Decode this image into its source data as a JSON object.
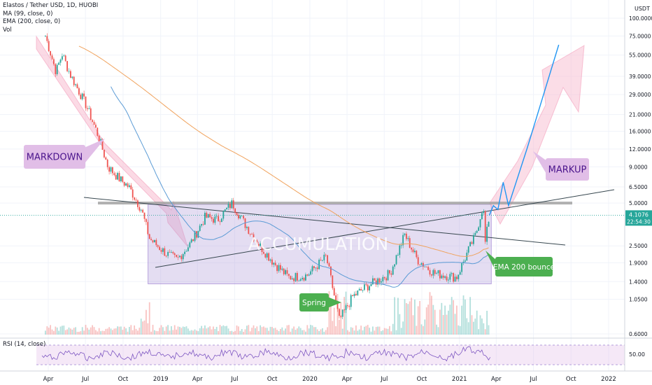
{
  "legend": {
    "title": "Elastos / Tether USD, 1D, HUOBI",
    "ma": "MA (99, close, 0)",
    "ema": "EMA (200, close, 0)",
    "vol": "Vol"
  },
  "rsi": {
    "label": "RSI (14, close)",
    "level": "50.00"
  },
  "price_axis": {
    "currency": "USDT",
    "ticks": [
      "100.0000",
      "75.0000",
      "55.0000",
      "39.0000",
      "29.0000",
      "21.0000",
      "16.0000",
      "12.0000",
      "9.0000",
      "6.5000",
      "5.0000",
      "2.5000",
      "1.9000",
      "1.4000",
      "1.0500",
      "0.6000"
    ],
    "last_price": "4.1076",
    "countdown": "22:54:30"
  },
  "time_axis": [
    "Apr",
    "Jul",
    "Oct",
    "2019",
    "Apr",
    "Jul",
    "Oct",
    "2020",
    "Apr",
    "Jul",
    "Oct",
    "2021",
    "Apr",
    "Jul",
    "Oct",
    "2022"
  ],
  "annotations": {
    "markdown": "MARKDOWN",
    "accumulation": "ACCUMULATION",
    "spring": "Spring",
    "ema_bounce": "EMA 200 bounce",
    "markup": "MARKUP"
  },
  "colors": {
    "up": "#26a69a",
    "down": "#ef5350",
    "ma": "#5b9bd5",
    "ema": "#f0a35e",
    "rsi": "#7e57c2",
    "accumulation_box": "#b39ddb",
    "arrow_fill": "#f8bbd0",
    "label_purple": "#e1bee7",
    "label_green": "#4caf50",
    "projection": "#2196f3"
  },
  "chart_data": {
    "type": "candlestick",
    "pair": "ELA/USDT",
    "timeframe": "1D",
    "x_range": [
      "2018-04",
      "2022-01"
    ],
    "y_scale": "log",
    "y_range": [
      0.6,
      100
    ],
    "price_path": [
      [
        "2018-03-25",
        75
      ],
      [
        "2018-04-20",
        42
      ],
      [
        "2018-05-05",
        56
      ],
      [
        "2018-05-25",
        40
      ],
      [
        "2018-07-01",
        25
      ],
      [
        "2018-08-01",
        15
      ],
      [
        "2018-08-25",
        9
      ],
      [
        "2018-09-20",
        7.5
      ],
      [
        "2018-10-15",
        6.5
      ],
      [
        "2018-11-15",
        4.5
      ],
      [
        "2018-12-05",
        2.8
      ],
      [
        "2019-01-15",
        2.2
      ],
      [
        "2019-02-10",
        2.0
      ],
      [
        "2019-03-15",
        2.6
      ],
      [
        "2019-04-20",
        4.0
      ],
      [
        "2019-05-20",
        3.8
      ],
      [
        "2019-06-25",
        5.0
      ],
      [
        "2019-07-25",
        3.6
      ],
      [
        "2019-09-01",
        2.5
      ],
      [
        "2019-10-05",
        1.9
      ],
      [
        "2019-11-10",
        1.5
      ],
      [
        "2019-12-25",
        1.55
      ],
      [
        "2020-02-10",
        2.1
      ],
      [
        "2020-03-13",
        0.75
      ],
      [
        "2020-04-15",
        1.1
      ],
      [
        "2020-05-20",
        1.3
      ],
      [
        "2020-07-15",
        1.6
      ],
      [
        "2020-08-20",
        3.0
      ],
      [
        "2020-09-20",
        2.0
      ],
      [
        "2020-11-01",
        1.6
      ],
      [
        "2020-12-25",
        1.5
      ],
      [
        "2021-01-25",
        2.4
      ],
      [
        "2021-02-10",
        3.0
      ],
      [
        "2021-02-28",
        4.9
      ],
      [
        "2021-03-05",
        2.6
      ],
      [
        "2021-03-15",
        4.1
      ]
    ],
    "projection": [
      [
        "2021-03-15",
        4.1
      ],
      [
        "2021-03-25",
        4.8
      ],
      [
        "2021-04-05",
        4.5
      ],
      [
        "2021-04-18",
        7.0
      ],
      [
        "2021-05-01",
        4.8
      ],
      [
        "2021-06-15",
        12.0
      ],
      [
        "2021-09-01",
        65.0
      ]
    ],
    "accumulation_range": {
      "low": 1.35,
      "high": 4.9,
      "start": "2018-12-01",
      "end": "2021-03-20"
    },
    "resistance_level": 5.0,
    "last_price": 4.1076,
    "rsi_level": 50
  }
}
